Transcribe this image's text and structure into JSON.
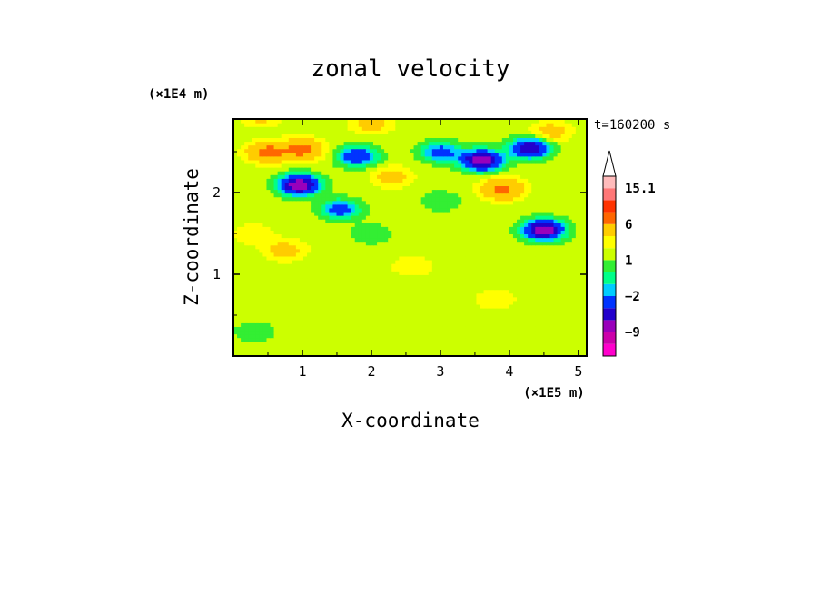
{
  "chart_data": {
    "type": "heatmap",
    "title": "zonal velocity",
    "xlabel": "X-coordinate",
    "ylabel": "Z-coordinate",
    "x_units": "(×1E5 m)",
    "y_units": "(×1E4 m)",
    "time_label": "t=160200 s",
    "xlim": [
      0,
      5.12
    ],
    "ylim": [
      0,
      2.9
    ],
    "x_ticks": [
      "1",
      "2",
      "3",
      "4",
      "5"
    ],
    "y_ticks": [
      "1",
      "2"
    ],
    "colorbar": {
      "levels": [
        -15,
        -12,
        -9,
        -6,
        -4,
        -2,
        -1,
        0,
        1,
        2,
        3,
        6,
        9,
        12,
        15.1
      ],
      "colors": [
        "#ff00cc",
        "#cc00aa",
        "#9900bb",
        "#2200cc",
        "#0033ff",
        "#00ccff",
        "#00ff88",
        "#33ee33",
        "#ccff00",
        "#ffff00",
        "#ffcc00",
        "#ff6600",
        "#ff3300",
        "#ff7777",
        "#ffbbbb"
      ],
      "tick_labels": [
        "15.1",
        "6",
        "1",
        "−2",
        "−9"
      ],
      "extend": "max"
    },
    "features": [
      {
        "x": 0.5,
        "z": 2.5,
        "value": 7
      },
      {
        "x": 1.0,
        "z": 2.53,
        "value": 7
      },
      {
        "x": 0.95,
        "z": 2.1,
        "value": -8
      },
      {
        "x": 1.8,
        "z": 2.45,
        "value": -4
      },
      {
        "x": 2.3,
        "z": 2.2,
        "value": 4
      },
      {
        "x": 1.55,
        "z": 1.8,
        "value": -3
      },
      {
        "x": 3.6,
        "z": 2.4,
        "value": -8
      },
      {
        "x": 4.3,
        "z": 2.55,
        "value": -6
      },
      {
        "x": 3.9,
        "z": 2.05,
        "value": 7
      },
      {
        "x": 4.5,
        "z": 1.55,
        "value": -8
      },
      {
        "x": 3.0,
        "z": 2.5,
        "value": -3
      },
      {
        "x": 4.6,
        "z": 2.75,
        "value": 4
      },
      {
        "x": 2.0,
        "z": 2.85,
        "value": 4
      },
      {
        "x": 0.4,
        "z": 2.95,
        "value": 4
      },
      {
        "x": 0.75,
        "z": 1.3,
        "value": 4
      },
      {
        "x": 2.6,
        "z": 1.1,
        "value": 3
      },
      {
        "x": 3.8,
        "z": 0.7,
        "value": 3
      },
      {
        "x": 0.3,
        "z": 1.5,
        "value": 3
      },
      {
        "x": 1.5,
        "z": 0.4,
        "value": 2
      },
      {
        "x": 3.3,
        "z": 0.25,
        "value": 2
      },
      {
        "x": 0.3,
        "z": 0.3,
        "value": 0
      },
      {
        "x": 2.0,
        "z": 1.5,
        "value": 0
      },
      {
        "x": 3.0,
        "z": 1.9,
        "value": 0
      }
    ]
  }
}
